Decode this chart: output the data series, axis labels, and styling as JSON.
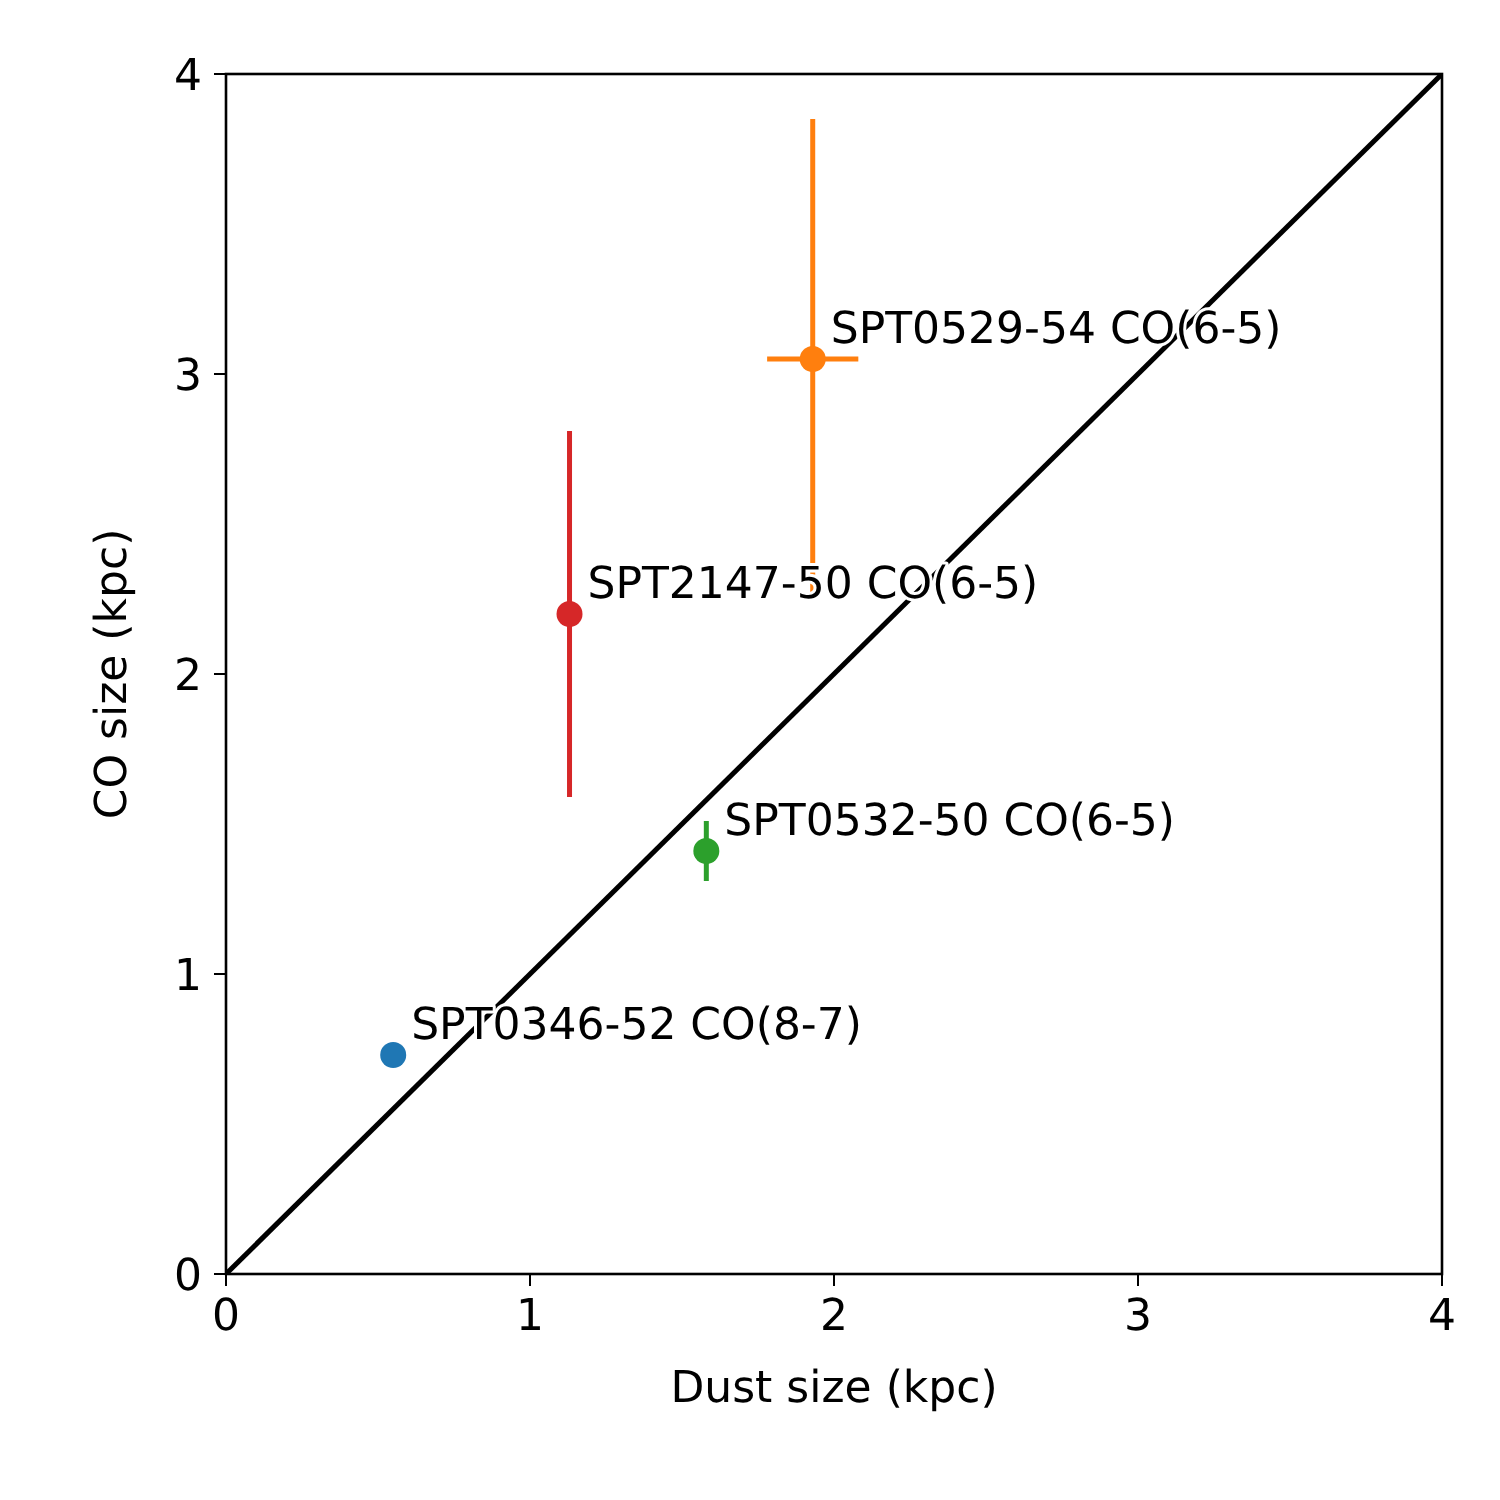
{
  "chart_data": {
    "type": "scatter",
    "xlabel": "Dust size (kpc)",
    "ylabel": "CO size (kpc)",
    "xlim": [
      0,
      4
    ],
    "ylim": [
      0,
      4
    ],
    "xticks": [
      0,
      1,
      2,
      3,
      4
    ],
    "yticks": [
      0,
      1,
      2,
      3,
      4
    ],
    "marker": "circle",
    "grid": false,
    "series": [
      {
        "type": "line",
        "color": "#000000",
        "x": [
          0,
          4
        ],
        "values": [
          0,
          4
        ],
        "marker": "none"
      },
      {
        "color": "#1f77b4",
        "x": [
          0.55
        ],
        "values": [
          0.73
        ]
      },
      {
        "color": "#2ca02c",
        "x": [
          1.58
        ],
        "values": [
          1.41
        ],
        "errors": [
          0.1
        ],
        "xerrors": [
          0.02
        ]
      },
      {
        "color": "#d62728",
        "x": [
          1.13
        ],
        "values": [
          2.2
        ],
        "errors": [
          0.61
        ]
      },
      {
        "color": "#ff7f0e",
        "x": [
          1.93
        ],
        "values": [
          3.05
        ],
        "errors": [
          0.8
        ],
        "xerrors": [
          0.15
        ]
      }
    ],
    "annotations": [
      {
        "text": "SPT0346-52 CO(8-7)",
        "x": 0.55,
        "y": 0.73
      },
      {
        "text": "SPT0532-50 CO(6-5)",
        "x": 1.58,
        "y": 1.41
      },
      {
        "text": "SPT2147-50 CO(6-5)",
        "x": 1.13,
        "y": 2.2
      },
      {
        "text": "SPT0529-54 CO(6-5)",
        "x": 1.93,
        "y": 3.05
      }
    ]
  }
}
